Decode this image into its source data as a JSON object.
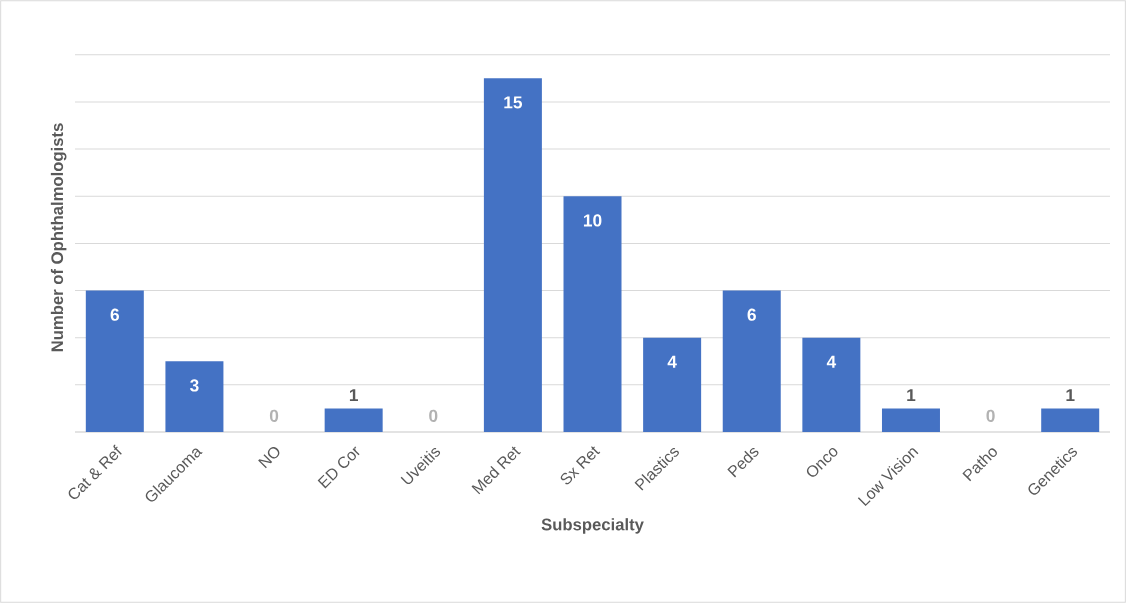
{
  "chart_data": {
    "type": "bar",
    "xlabel": "Subspecialty",
    "ylabel": "Number of Ophthalmologists",
    "categories": [
      "Cat & Ref",
      "Glaucoma",
      "NO",
      "ED Cor",
      "Uveitis",
      "Med Ret",
      "Sx Ret",
      "Plastics",
      "Peds",
      "Onco",
      "Low Vision",
      "Patho",
      "Genetics"
    ],
    "values": [
      6,
      3,
      0,
      1,
      0,
      15,
      10,
      4,
      6,
      4,
      1,
      0,
      1
    ],
    "color": "#4472c4",
    "tick_labels": "x",
    "grid": "y",
    "data_labels": true
  }
}
